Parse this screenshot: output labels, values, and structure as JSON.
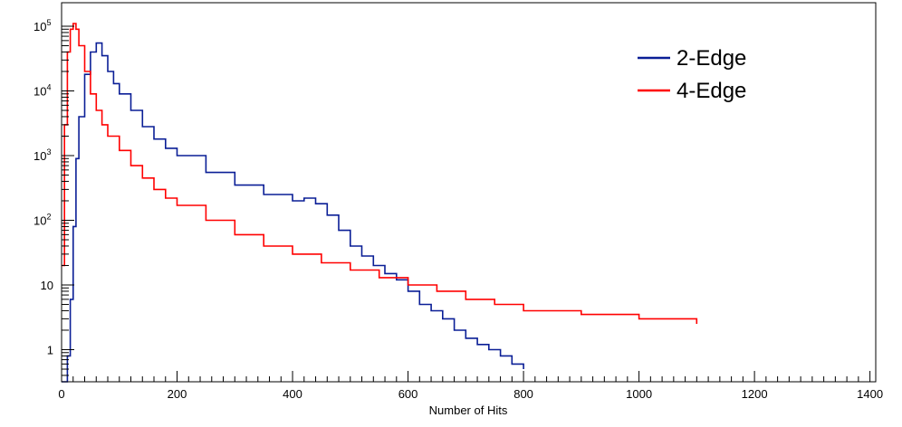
{
  "chart_data": {
    "type": "line",
    "title": "",
    "xlabel": "Number of Hits",
    "ylabel": "",
    "xlim": [
      0,
      1410
    ],
    "ylim": [
      0.3,
      150000
    ],
    "y_scale": "log",
    "grid": false,
    "legend_position": "top-right",
    "x_ticks": [
      0,
      200,
      400,
      600,
      800,
      1000,
      1200,
      1400
    ],
    "y_ticks": [
      {
        "value": 1,
        "base": "1",
        "exp": ""
      },
      {
        "value": 10,
        "base": "10",
        "exp": ""
      },
      {
        "value": 100,
        "base": "10",
        "exp": "2"
      },
      {
        "value": 1000,
        "base": "10",
        "exp": "3"
      },
      {
        "value": 10000,
        "base": "10",
        "exp": "4"
      },
      {
        "value": 100000,
        "base": "10",
        "exp": "5"
      }
    ],
    "series": [
      {
        "name": "2-Edge",
        "color": "#0a1e96",
        "x": [
          0,
          5,
          10,
          15,
          20,
          25,
          30,
          40,
          50,
          60,
          70,
          80,
          90,
          100,
          120,
          140,
          160,
          180,
          200,
          250,
          300,
          350,
          400,
          420,
          440,
          460,
          480,
          500,
          520,
          540,
          560,
          580,
          600,
          620,
          640,
          660,
          680,
          700,
          720,
          740,
          760,
          780,
          800
        ],
        "y": [
          0.3,
          0.3,
          0.8,
          6,
          80,
          900,
          4000,
          18000,
          40000,
          55000,
          35000,
          20000,
          13000,
          9000,
          5000,
          2800,
          1800,
          1300,
          1000,
          550,
          350,
          250,
          200,
          220,
          180,
          120,
          70,
          40,
          28,
          20,
          15,
          12,
          8,
          5,
          4,
          3,
          2,
          1.5,
          1.2,
          1,
          0.8,
          0.6,
          0.5
        ]
      },
      {
        "name": "4-Edge",
        "color": "#ff0000",
        "x": [
          0,
          5,
          10,
          15,
          20,
          25,
          30,
          40,
          50,
          60,
          70,
          80,
          100,
          120,
          140,
          160,
          180,
          200,
          250,
          300,
          350,
          400,
          450,
          500,
          550,
          600,
          650,
          700,
          750,
          800,
          900,
          1000,
          1100
        ],
        "y": [
          20,
          3000,
          40000,
          90000,
          110000,
          90000,
          50000,
          20000,
          9000,
          5000,
          3000,
          2000,
          1200,
          700,
          450,
          300,
          220,
          170,
          100,
          60,
          40,
          30,
          22,
          17,
          13,
          10,
          8,
          6,
          5,
          4,
          3.5,
          3,
          2.5
        ]
      }
    ]
  }
}
